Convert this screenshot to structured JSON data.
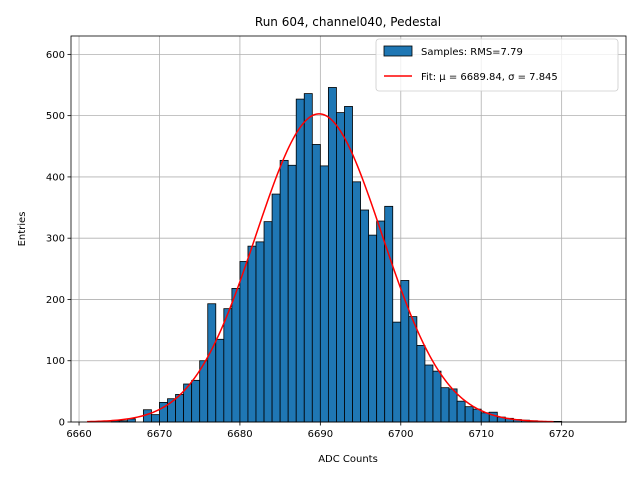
{
  "chart_data": {
    "type": "bar",
    "title": "Run 604, channel040, Pedestal",
    "xlabel": "ADC Counts",
    "ylabel": "Entries",
    "xlim": [
      6659,
      6728
    ],
    "ylim": [
      0,
      630
    ],
    "xticks": [
      6660,
      6670,
      6680,
      6690,
      6700,
      6710,
      6720
    ],
    "yticks": [
      0,
      100,
      200,
      300,
      400,
      500,
      600
    ],
    "grid": true,
    "legend_position": "top-right",
    "histogram": {
      "name": "Samples: RMS=7.79",
      "color": "#1f77b4",
      "edge_color": "#000000",
      "bin_width": 1,
      "bin_start": 6661,
      "counts": [
        0,
        0,
        0,
        2,
        2,
        5,
        0,
        20,
        12,
        32,
        38,
        45,
        62,
        68,
        100,
        193,
        135,
        185,
        218,
        262,
        287,
        294,
        327,
        372,
        427,
        419,
        527,
        536,
        453,
        418,
        546,
        505,
        515,
        392,
        346,
        305,
        328,
        352,
        163,
        231,
        172,
        125,
        93,
        83,
        56,
        54,
        34,
        25,
        21,
        15,
        16,
        8,
        6,
        4,
        3,
        2,
        1,
        1,
        1,
        0,
        0,
        0,
        0,
        0
      ]
    },
    "fit": {
      "name": "Fit: μ = 6689.84, σ = 7.845",
      "mu": 6689.84,
      "sigma": 7.845,
      "peak": 503,
      "x_range": [
        6661,
        6719
      ],
      "color": "#ff0000"
    }
  }
}
